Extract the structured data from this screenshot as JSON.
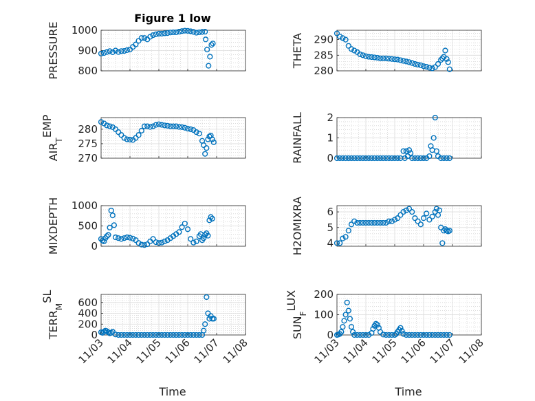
{
  "figure": {
    "title": "Figure 1 low"
  },
  "x_ticks": [
    "11/03",
    "11/04",
    "11/05",
    "11/06",
    "11/07",
    "11/08"
  ],
  "x_label": "Time",
  "colors": {
    "marker": "#0072BD",
    "axis": "#262626",
    "grid": "#c8c8c8"
  },
  "chart_data": [
    {
      "type": "scatter",
      "panel": "pressure",
      "title": "Figure 1 low",
      "ylabel": "PRESSURE",
      "ylabel_sub": "",
      "ylim": [
        800,
        1000
      ],
      "yticks": [
        800,
        900,
        1000
      ],
      "xlim": [
        0,
        5
      ],
      "grid": true,
      "series": [
        {
          "x": [
            0.0,
            0.1,
            0.2,
            0.3,
            0.4,
            0.5,
            0.6,
            0.7,
            0.8,
            0.9,
            1.0,
            1.1,
            1.2,
            1.3,
            1.4,
            1.5,
            1.6,
            1.7,
            1.8,
            1.9,
            2.0,
            2.1,
            2.2,
            2.3,
            2.4,
            2.5,
            2.6,
            2.7,
            2.8,
            2.9,
            3.0,
            3.1,
            3.2,
            3.3,
            3.4,
            3.5,
            3.6,
            3.62,
            3.67,
            3.72,
            3.77,
            3.82,
            3.87
          ],
          "y": [
            885,
            888,
            893,
            897,
            892,
            900,
            893,
            897,
            898,
            902,
            905,
            918,
            930,
            948,
            962,
            962,
            955,
            968,
            976,
            980,
            983,
            983,
            985,
            986,
            989,
            990,
            990,
            993,
            996,
            998,
            997,
            995,
            992,
            988,
            990,
            992,
            993,
            955,
            905,
            825,
            870,
            928,
            935
          ]
        }
      ]
    },
    {
      "type": "scatter",
      "panel": "theta",
      "ylabel": "THETA",
      "ylabel_sub": "",
      "ylim": [
        280,
        293
      ],
      "yticks": [
        280,
        285,
        290
      ],
      "xlim": [
        0,
        5
      ],
      "grid": true,
      "series": [
        {
          "x": [
            0.0,
            0.1,
            0.2,
            0.3,
            0.4,
            0.5,
            0.6,
            0.7,
            0.8,
            0.9,
            1.0,
            1.1,
            1.2,
            1.3,
            1.4,
            1.5,
            1.6,
            1.7,
            1.8,
            1.9,
            2.0,
            2.1,
            2.2,
            2.3,
            2.4,
            2.5,
            2.6,
            2.7,
            2.8,
            2.9,
            3.0,
            3.1,
            3.2,
            3.3,
            3.4,
            3.5,
            3.6,
            3.65,
            3.7,
            3.75,
            3.8,
            3.85,
            3.9
          ],
          "y": [
            292,
            291,
            290.5,
            290,
            288,
            287,
            286.5,
            286,
            285.3,
            285,
            284.7,
            284.5,
            284.4,
            284.3,
            284.2,
            284,
            284,
            284,
            283.9,
            283.8,
            283.7,
            283.6,
            283.4,
            283.2,
            283,
            282.8,
            282.5,
            282.2,
            282,
            281.8,
            281.5,
            281.3,
            281,
            280.8,
            281.2,
            282.2,
            283.5,
            284,
            284.5,
            286.5,
            283.8,
            282.8,
            280.5
          ]
        }
      ]
    },
    {
      "type": "scatter",
      "panel": "air_temp",
      "ylabel": "AIR",
      "ylabel_sub": "T",
      "ylabel_tail": "EMP",
      "ylim": [
        270,
        284
      ],
      "yticks": [
        270,
        275,
        280
      ],
      "xlim": [
        0,
        5
      ],
      "grid": true,
      "series": [
        {
          "x": [
            0.0,
            0.1,
            0.2,
            0.3,
            0.4,
            0.5,
            0.6,
            0.7,
            0.8,
            0.9,
            1.0,
            1.1,
            1.2,
            1.3,
            1.4,
            1.5,
            1.6,
            1.7,
            1.8,
            1.9,
            2.0,
            2.1,
            2.2,
            2.3,
            2.4,
            2.5,
            2.6,
            2.7,
            2.8,
            2.9,
            3.0,
            3.1,
            3.2,
            3.3,
            3.4,
            3.5,
            3.55,
            3.6,
            3.65,
            3.7,
            3.75,
            3.8,
            3.85,
            3.9
          ],
          "y": [
            282.5,
            282,
            281.3,
            281,
            280.7,
            280,
            279,
            278,
            277,
            276.5,
            276.4,
            276.3,
            277,
            278,
            279.5,
            281,
            281,
            280.8,
            281,
            281.5,
            281.7,
            281.5,
            281.3,
            281.2,
            281,
            281,
            281,
            280.8,
            280.7,
            280.5,
            280.2,
            280,
            279.7,
            279,
            278.5,
            276,
            274.5,
            271.5,
            273.5,
            276.5,
            277.5,
            277.8,
            276.5,
            275.5
          ]
        }
      ]
    },
    {
      "type": "scatter",
      "panel": "rainfall",
      "ylabel": "RAINFALL",
      "ylabel_sub": "",
      "ylim": [
        0,
        2
      ],
      "yticks": [
        0,
        1,
        2
      ],
      "xlim": [
        0,
        5
      ],
      "grid": true,
      "series": [
        {
          "x": [
            0.0,
            0.1,
            0.2,
            0.3,
            0.4,
            0.5,
            0.6,
            0.7,
            0.8,
            0.9,
            1.0,
            1.1,
            1.2,
            1.3,
            1.4,
            1.5,
            1.6,
            1.7,
            1.8,
            1.9,
            2.0,
            2.1,
            2.2,
            2.3,
            2.35,
            2.4,
            2.45,
            2.5,
            2.55,
            2.6,
            2.7,
            2.8,
            2.9,
            3.0,
            3.1,
            3.2,
            3.25,
            3.3,
            3.35,
            3.4,
            3.45,
            3.5,
            3.6,
            3.7,
            3.8,
            3.9
          ],
          "y": [
            0,
            0,
            0,
            0,
            0,
            0,
            0,
            0,
            0,
            0,
            0,
            0,
            0,
            0,
            0,
            0,
            0,
            0,
            0,
            0,
            0,
            0,
            0,
            0.35,
            0,
            0.35,
            0.1,
            0.4,
            0.25,
            0,
            0,
            0,
            0,
            0,
            0,
            0.1,
            0.6,
            0.4,
            1.0,
            2.0,
            0.35,
            0.1,
            0,
            0,
            0,
            0
          ]
        }
      ]
    },
    {
      "type": "scatter",
      "panel": "mixdepth",
      "ylabel": "MIXDEPTH",
      "ylabel_sub": "",
      "ylim": [
        0,
        1000
      ],
      "yticks": [
        0,
        500,
        1000
      ],
      "xlim": [
        0,
        5
      ],
      "grid": true,
      "series": [
        {
          "x": [
            0.0,
            0.05,
            0.1,
            0.15,
            0.2,
            0.25,
            0.3,
            0.35,
            0.4,
            0.45,
            0.5,
            0.6,
            0.7,
            0.8,
            0.9,
            1.0,
            1.1,
            1.2,
            1.3,
            1.4,
            1.5,
            1.6,
            1.7,
            1.8,
            1.9,
            2.0,
            2.1,
            2.2,
            2.3,
            2.4,
            2.5,
            2.6,
            2.7,
            2.8,
            2.9,
            3.0,
            3.1,
            3.2,
            3.3,
            3.4,
            3.45,
            3.5,
            3.55,
            3.6,
            3.65,
            3.7,
            3.75,
            3.8,
            3.85
          ],
          "y": [
            180,
            140,
            120,
            200,
            250,
            280,
            460,
            880,
            760,
            520,
            220,
            200,
            180,
            200,
            220,
            210,
            190,
            150,
            80,
            40,
            30,
            50,
            120,
            180,
            100,
            80,
            90,
            120,
            150,
            200,
            250,
            300,
            350,
            470,
            560,
            420,
            180,
            90,
            120,
            250,
            300,
            150,
            200,
            280,
            320,
            260,
            640,
            720,
            680
          ]
        }
      ]
    },
    {
      "type": "scatter",
      "panel": "h2omixra",
      "ylabel": "H2OMIXRA",
      "ylabel_sub": "",
      "ylim": [
        3.8,
        6.4
      ],
      "yticks": [
        4,
        5,
        6
      ],
      "xlim": [
        0,
        5
      ],
      "grid": true,
      "series": [
        {
          "x": [
            0.0,
            0.1,
            0.2,
            0.3,
            0.4,
            0.5,
            0.6,
            0.7,
            0.8,
            0.9,
            1.0,
            1.1,
            1.2,
            1.3,
            1.4,
            1.5,
            1.6,
            1.7,
            1.8,
            1.9,
            2.0,
            2.1,
            2.2,
            2.3,
            2.4,
            2.5,
            2.6,
            2.7,
            2.8,
            2.9,
            3.0,
            3.1,
            3.2,
            3.3,
            3.4,
            3.45,
            3.5,
            3.55,
            3.6,
            3.65,
            3.7,
            3.75,
            3.8,
            3.85,
            3.9
          ],
          "y": [
            4.0,
            4.0,
            4.3,
            4.4,
            4.8,
            5.2,
            5.4,
            5.3,
            5.3,
            5.3,
            5.3,
            5.3,
            5.3,
            5.3,
            5.3,
            5.3,
            5.3,
            5.3,
            5.4,
            5.4,
            5.5,
            5.6,
            5.8,
            6.0,
            6.1,
            6.2,
            6.0,
            5.6,
            5.4,
            5.2,
            5.6,
            5.9,
            5.5,
            5.7,
            6.0,
            6.2,
            5.8,
            6.1,
            5.0,
            4.0,
            4.8,
            4.9,
            4.8,
            4.75,
            4.8
          ]
        }
      ]
    },
    {
      "type": "scatter",
      "panel": "terr_msl",
      "ylabel": "TERR",
      "ylabel_sub": "M",
      "ylabel_tail": "SL",
      "ylim": [
        0,
        750
      ],
      "yticks": [
        0,
        200,
        400,
        600
      ],
      "xlim": [
        0,
        5
      ],
      "grid": true,
      "series": [
        {
          "x": [
            0.0,
            0.05,
            0.1,
            0.15,
            0.2,
            0.25,
            0.3,
            0.35,
            0.4,
            0.5,
            0.6,
            0.7,
            0.8,
            0.9,
            1.0,
            1.1,
            1.2,
            1.3,
            1.4,
            1.5,
            1.6,
            1.7,
            1.8,
            1.9,
            2.0,
            2.1,
            2.2,
            2.3,
            2.4,
            2.5,
            2.6,
            2.7,
            2.8,
            2.9,
            3.0,
            3.1,
            3.2,
            3.3,
            3.4,
            3.5,
            3.55,
            3.6,
            3.65,
            3.7,
            3.75,
            3.8,
            3.85,
            3.9
          ],
          "y": [
            50,
            40,
            60,
            80,
            70,
            50,
            30,
            40,
            60,
            10,
            0,
            0,
            0,
            0,
            0,
            0,
            0,
            0,
            0,
            0,
            0,
            0,
            0,
            0,
            0,
            0,
            0,
            0,
            0,
            0,
            0,
            0,
            0,
            0,
            0,
            0,
            0,
            0,
            0,
            0,
            80,
            200,
            700,
            400,
            300,
            350,
            300,
            300
          ]
        }
      ]
    },
    {
      "type": "scatter",
      "panel": "sun_flux",
      "ylabel": "SUN",
      "ylabel_sub": "F",
      "ylabel_tail": "LUX",
      "ylim": [
        0,
        200
      ],
      "yticks": [
        0,
        100,
        200
      ],
      "xlim": [
        0,
        5
      ],
      "grid": true,
      "series": [
        {
          "x": [
            0.0,
            0.05,
            0.1,
            0.15,
            0.2,
            0.25,
            0.3,
            0.35,
            0.4,
            0.45,
            0.5,
            0.55,
            0.6,
            0.7,
            0.8,
            0.9,
            1.0,
            1.1,
            1.2,
            1.25,
            1.3,
            1.35,
            1.4,
            1.45,
            1.5,
            1.6,
            1.7,
            1.8,
            1.9,
            2.0,
            2.05,
            2.1,
            2.15,
            2.2,
            2.25,
            2.3,
            2.4,
            2.5,
            2.6,
            2.7,
            2.8,
            2.9,
            3.0,
            3.1,
            3.2,
            3.3,
            3.4,
            3.5,
            3.6,
            3.7,
            3.8,
            3.9
          ],
          "y": [
            0,
            2,
            5,
            15,
            40,
            70,
            100,
            160,
            120,
            80,
            40,
            15,
            0,
            0,
            0,
            0,
            0,
            0,
            10,
            30,
            45,
            55,
            50,
            35,
            15,
            2,
            0,
            0,
            0,
            0,
            5,
            15,
            25,
            35,
            20,
            5,
            0,
            0,
            0,
            0,
            0,
            0,
            0,
            0,
            0,
            0,
            0,
            0,
            0,
            0,
            0,
            0
          ]
        }
      ]
    }
  ]
}
